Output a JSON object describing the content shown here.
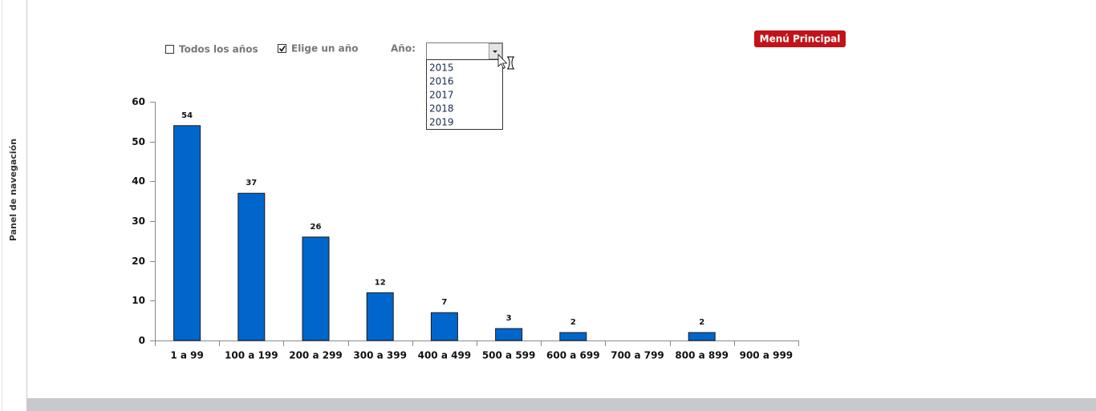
{
  "nav_panel": {
    "label": "Panel de navegación"
  },
  "filters": {
    "all_years": "Todos los años",
    "choose_year": "Elige un año",
    "year_label": "Año:"
  },
  "year_list": [
    "2015",
    "2016",
    "2017",
    "2018",
    "2019"
  ],
  "menu_button": {
    "label": "Menú Principal"
  },
  "chart_data": {
    "type": "bar",
    "categories": [
      "1 a 99",
      "100 a 199",
      "200 a 299",
      "300 a 399",
      "400 a 499",
      "500 a 599",
      "600 a 699",
      "700 a 799",
      "800 a 899",
      "900 a 999"
    ],
    "values": [
      54,
      37,
      26,
      12,
      7,
      3,
      2,
      null,
      2,
      null
    ],
    "color": "#0066cc",
    "ylim": [
      0,
      60
    ],
    "yticks": [
      0,
      10,
      20,
      30,
      40,
      50,
      60
    ]
  }
}
